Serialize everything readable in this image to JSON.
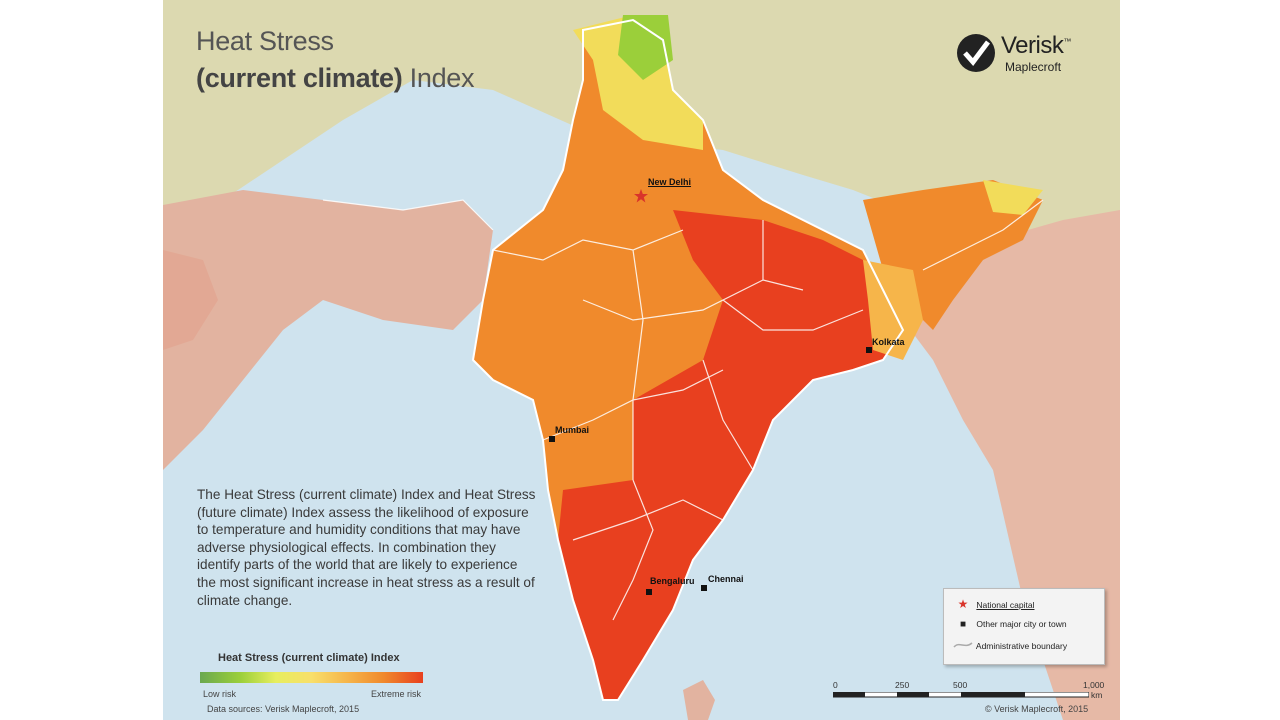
{
  "title": {
    "line1": "Heat Stress",
    "line2_bold": "(current climate)",
    "line2_rest": " Index"
  },
  "logo": {
    "name": "Verisk",
    "tm": "™",
    "sub": "Maplecroft"
  },
  "description": "The Heat Stress (current climate) Index and Heat Stress (future climate) Index assess the likelihood of exposure to temperature and humidity conditions that may have adverse physiological effects. In combination they identify parts of the world that are likely to experience the most significant increase in heat stress as a result of climate change.",
  "legend": {
    "title": "Heat Stress (current climate) Index",
    "low_label": "Low risk",
    "high_label": "Extreme risk",
    "colors": [
      "#6aa84f",
      "#9bcf3a",
      "#e7ee5e",
      "#f8df6a",
      "#f6b54a",
      "#f08a2c",
      "#e8401f"
    ]
  },
  "key": {
    "national_capital": "National capital",
    "major_city": "Other major city or town",
    "admin_boundary": "Administrative boundary"
  },
  "cities": {
    "delhi": "New Delhi",
    "kolkata": "Kolkata",
    "mumbai": "Mumbai",
    "bengaluru": "Bengaluru",
    "chennai": "Chennai"
  },
  "scale": {
    "ticks": [
      "0",
      "250",
      "500",
      "1,000"
    ],
    "unit": "km"
  },
  "sources": "Data sources: Verisk Maplecroft, 2015",
  "copyright": "© Verisk Maplecroft, 2015",
  "colors": {
    "sea": "#cfe3ee",
    "land_low": "#dcd9a8",
    "land_mid": "#e6b9a0",
    "high": "#f08a2c",
    "extreme": "#e8401f"
  }
}
